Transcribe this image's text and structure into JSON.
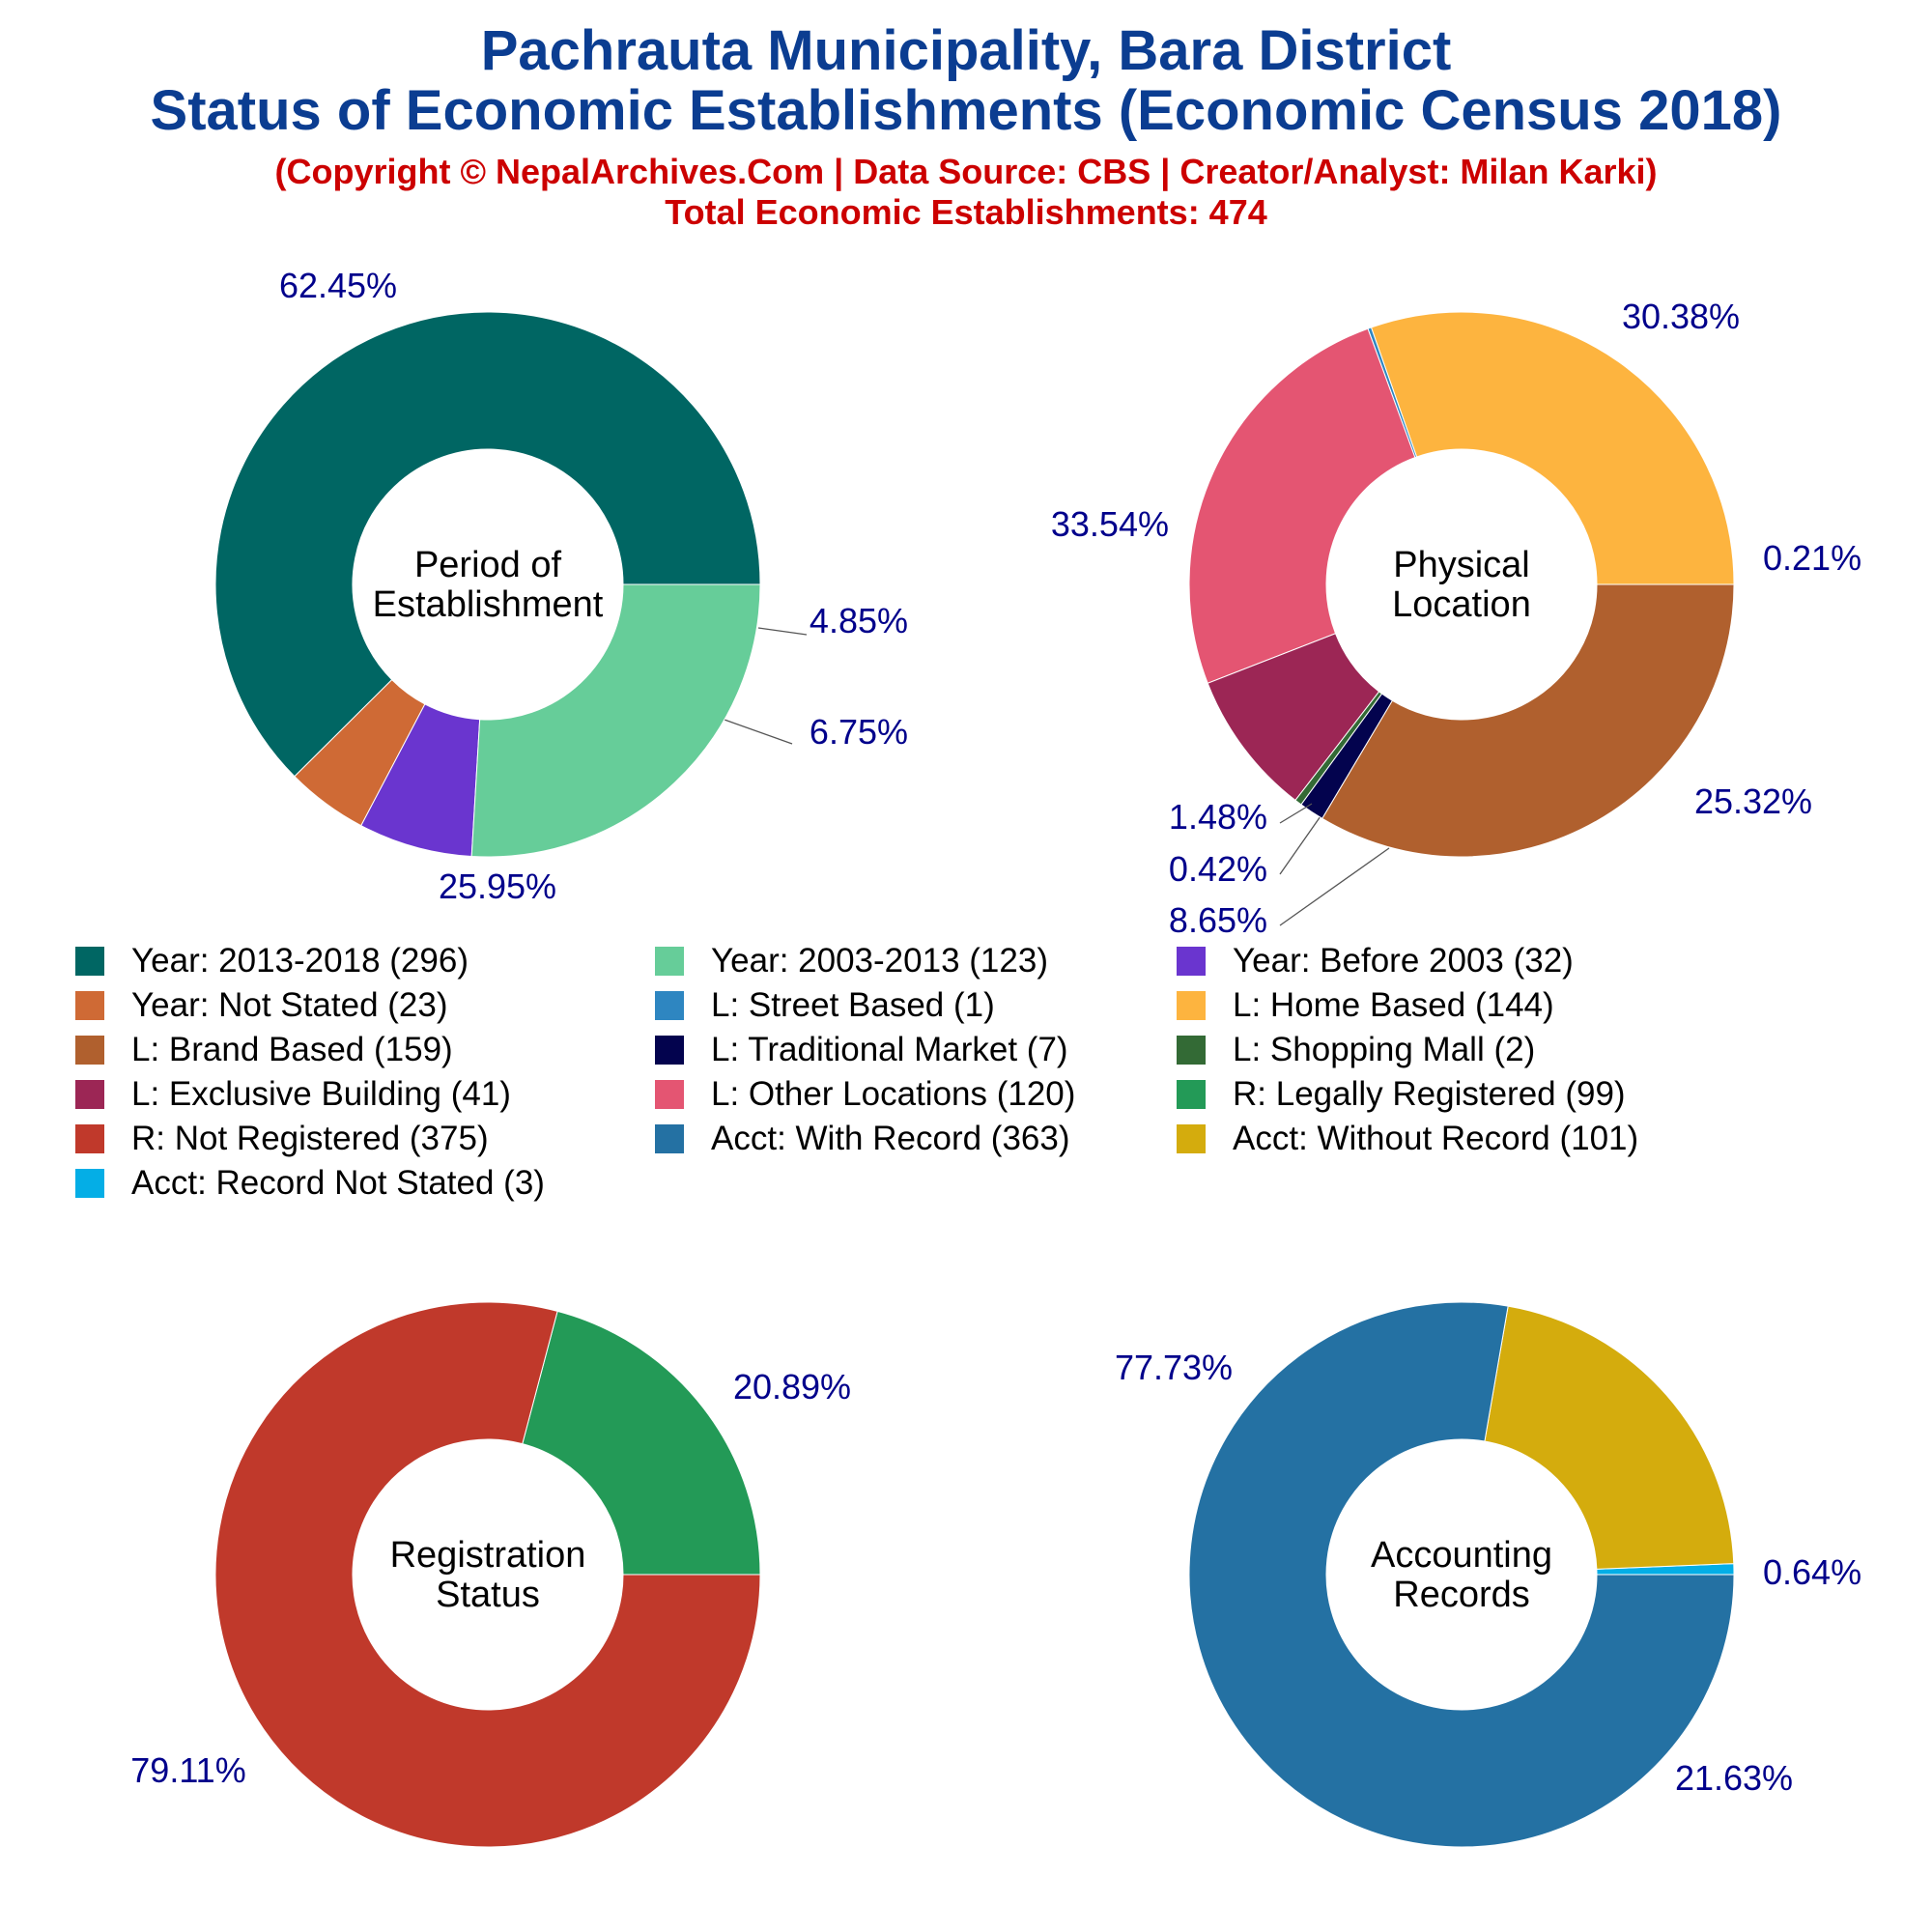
{
  "header": {
    "title_line1": "Pachrauta Municipality, Bara District",
    "title_line2": "Status of Economic Establishments (Economic Census 2018)",
    "subtitle_line1": "(Copyright © NepalArchives.Com | Data Source: CBS | Creator/Analyst: Milan Karki)",
    "subtitle_line2": "Total Economic Establishments: 474"
  },
  "chart_data": [
    {
      "type": "pie",
      "variant": "donut",
      "center_label": [
        "Period of",
        "Establishment"
      ],
      "slices": [
        {
          "label": "Year: 2013-2018",
          "value": 296,
          "percent_label": "62.45%",
          "color": "#006663"
        },
        {
          "label": "Year: Not Stated",
          "value": 23,
          "percent_label": "4.85%",
          "color": "#cf6a35"
        },
        {
          "label": "Year: Before 2003",
          "value": 32,
          "percent_label": "6.75%",
          "color": "#6a35cf"
        },
        {
          "label": "Year: 2003-2013",
          "value": 123,
          "percent_label": "25.95%",
          "color": "#66cd99"
        }
      ]
    },
    {
      "type": "pie",
      "variant": "donut",
      "center_label": [
        "Physical",
        "Location"
      ],
      "slices": [
        {
          "label": "L: Home Based",
          "value": 144,
          "percent_label": "30.38%",
          "color": "#fdb43f"
        },
        {
          "label": "L: Street Based",
          "value": 1,
          "percent_label": "0.21%",
          "color": "#2e86c1"
        },
        {
          "label": "L: Other Locations",
          "value": 120,
          "percent_label": "25.32%",
          "color": "#e45572"
        },
        {
          "label": "L: Exclusive Building",
          "value": 41,
          "percent_label": "8.65%",
          "color": "#9c2655"
        },
        {
          "label": "L: Shopping Mall",
          "value": 2,
          "percent_label": "0.42%",
          "color": "#336a35"
        },
        {
          "label": "L: Traditional Market",
          "value": 7,
          "percent_label": "1.48%",
          "color": "#03034e"
        },
        {
          "label": "L: Brand Based",
          "value": 159,
          "percent_label": "33.54%",
          "color": "#b0602e"
        }
      ]
    },
    {
      "type": "pie",
      "variant": "donut",
      "center_label": [
        "Registration",
        "Status"
      ],
      "slices": [
        {
          "label": "R: Legally Registered",
          "value": 99,
          "percent_label": "20.89%",
          "color": "#239a57"
        },
        {
          "label": "R: Not Registered",
          "value": 375,
          "percent_label": "79.11%",
          "color": "#c0392b"
        }
      ]
    },
    {
      "type": "pie",
      "variant": "donut",
      "center_label": [
        "Accounting",
        "Records"
      ],
      "slices": [
        {
          "label": "Acct: Record Not Stated",
          "value": 3,
          "percent_label": "0.64%",
          "color": "#04aee6"
        },
        {
          "label": "Acct: Without Record",
          "value": 101,
          "percent_label": "21.63%",
          "color": "#d4ac0d"
        },
        {
          "label": "Acct: With Record",
          "value": 363,
          "percent_label": "77.73%",
          "color": "#2471a3"
        }
      ]
    }
  ],
  "legend": {
    "items": [
      {
        "label": "Year: 2013-2018 (296)",
        "color": "#006663"
      },
      {
        "label": "Year: 2003-2013 (123)",
        "color": "#66cd99"
      },
      {
        "label": "Year: Before 2003 (32)",
        "color": "#6a35cf"
      },
      {
        "label": "Year: Not Stated (23)",
        "color": "#cf6a35"
      },
      {
        "label": "L: Street Based (1)",
        "color": "#2e86c1"
      },
      {
        "label": "L: Home Based (144)",
        "color": "#fdb43f"
      },
      {
        "label": "L: Brand Based (159)",
        "color": "#b0602e"
      },
      {
        "label": "L: Traditional Market (7)",
        "color": "#03034e"
      },
      {
        "label": "L: Shopping Mall (2)",
        "color": "#336a35"
      },
      {
        "label": "L: Exclusive Building (41)",
        "color": "#9c2655"
      },
      {
        "label": "L: Other Locations (120)",
        "color": "#e45572"
      },
      {
        "label": "R: Legally Registered (99)",
        "color": "#239a57"
      },
      {
        "label": "R: Not Registered (375)",
        "color": "#c0392b"
      },
      {
        "label": "Acct: With Record (363)",
        "color": "#2471a3"
      },
      {
        "label": "Acct: Without Record (101)",
        "color": "#d4ac0d"
      },
      {
        "label": "Acct: Record Not Stated (3)",
        "color": "#04aee6"
      }
    ]
  }
}
